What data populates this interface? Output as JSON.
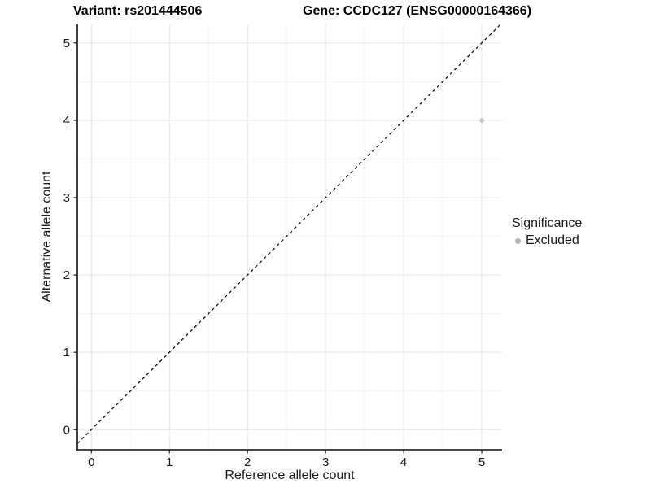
{
  "header": {
    "variant_title": "Variant: rs201444506",
    "gene_title": "Gene: CCDC127 (ENSG00000164366)"
  },
  "legend": {
    "title": "Significance",
    "items": [
      {
        "label": "Excluded",
        "color": "#b4b4b4"
      }
    ]
  },
  "colors": {
    "point": "#c2c2c2",
    "major_grid": "#e4e4e4",
    "minor_grid": "#f2f2f2",
    "axis_line": "#2b2b2b",
    "tick_mark": "#333333",
    "tick_label": "#1a1a1a",
    "reference_line": "#000000"
  },
  "chart_data": {
    "type": "scatter",
    "title": "Variant: rs201444506 | Gene: CCDC127 (ENSG00000164366)",
    "xlabel": "Reference allele count",
    "ylabel": "Alternative allele count",
    "xlim": [
      -0.18,
      5.26
    ],
    "ylim": [
      -0.26,
      5.24
    ],
    "x_ticks": [
      0,
      1,
      2,
      3,
      4,
      5
    ],
    "y_ticks": [
      0,
      1,
      2,
      3,
      4,
      5
    ],
    "grid": "major+minor",
    "legend_position": "right",
    "series": [
      {
        "name": "Excluded",
        "color": "#c2c2c2",
        "points": [
          {
            "x": 5,
            "y": 4
          }
        ]
      }
    ],
    "reference_line": {
      "kind": "identity",
      "style": "dashed",
      "color": "#000000"
    }
  }
}
